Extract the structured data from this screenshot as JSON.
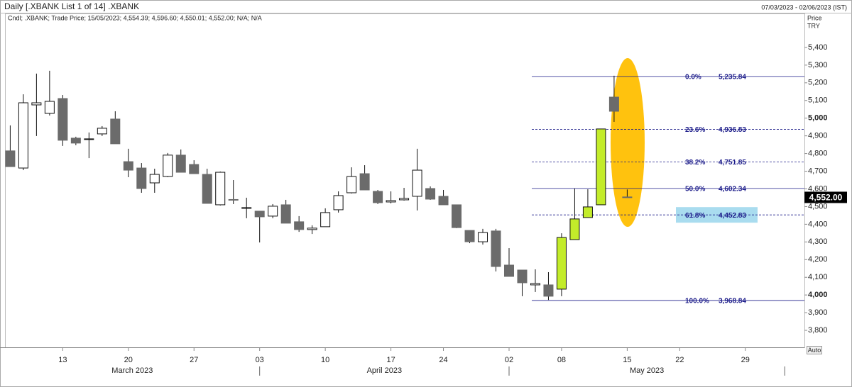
{
  "header": {
    "title": "Daily [.XBANK List 1 of 14] .XBANK",
    "date_range": "07/03/2023 - 02/06/2023 (IST)"
  },
  "chart_data": {
    "type": "candlestick",
    "legend_text": "Cndl; .XBANK; Trade Price; 15/05/2023; 4,554.39; 4,596.60; 4,550.01; 4,552.00; N/A; N/A",
    "y_axis_label": [
      "Price",
      "TRY"
    ],
    "auto_button": "Auto",
    "ylim": [
      3704,
      5548
    ],
    "yticks": [
      {
        "value": 3800,
        "label": "3,800"
      },
      {
        "value": 3900,
        "label": "3,900"
      },
      {
        "value": 4000,
        "label": "4,000"
      },
      {
        "value": 4100,
        "label": "4,100"
      },
      {
        "value": 4200,
        "label": "4,200"
      },
      {
        "value": 4300,
        "label": "4,300"
      },
      {
        "value": 4400,
        "label": "4,400"
      },
      {
        "value": 4500,
        "label": "4,500"
      },
      {
        "value": 4600,
        "label": "4,600"
      },
      {
        "value": 4700,
        "label": "4,700"
      },
      {
        "value": 4800,
        "label": "4,800"
      },
      {
        "value": 4900,
        "label": "4,900"
      },
      {
        "value": 5000,
        "label": "5,000"
      },
      {
        "value": 5100,
        "label": "5,100"
      },
      {
        "value": 5200,
        "label": "5,200"
      },
      {
        "value": 5300,
        "label": "5,300"
      },
      {
        "value": 5400,
        "label": "5,400"
      }
    ],
    "xlim": [
      -0.4,
      60.5
    ],
    "xticks": [
      {
        "value": 4,
        "label": "13"
      },
      {
        "value": 9,
        "label": "20"
      },
      {
        "value": 14,
        "label": "27"
      },
      {
        "value": 19,
        "label": "03"
      },
      {
        "value": 24,
        "label": "10"
      },
      {
        "value": 29,
        "label": "17"
      },
      {
        "value": 33,
        "label": "24"
      },
      {
        "value": 38,
        "label": "02"
      },
      {
        "value": 42,
        "label": "08"
      },
      {
        "value": 47,
        "label": "15"
      },
      {
        "value": 51,
        "label": "22"
      },
      {
        "value": 56,
        "label": "29"
      }
    ],
    "month_ticks": [
      19,
      38,
      59
    ],
    "months": [
      "March 2023",
      "April 2023",
      "May 2023"
    ],
    "open": [
      4815,
      4718,
      5075,
      5027,
      5111,
      4887,
      4879,
      4911,
      4995,
      4754,
      4718,
      4634,
      4670,
      4791,
      4738,
      4682,
      4510,
      4540,
      4494,
      4474,
      4446,
      4510,
      4414,
      4370,
      4386,
      4482,
      4578,
      4686,
      4586,
      4526,
      4538,
      4558,
      4602,
      4558,
      4510,
      4365,
      4301,
      4362,
      4169,
      4141,
      4057,
      4057,
      4033,
      4313,
      4438,
      4510,
      5119,
      4554.39
    ],
    "high": [
      4959,
      5135,
      5252,
      5268,
      5131,
      4895,
      4919,
      4955,
      5039,
      4827,
      4746,
      4714,
      4803,
      4823,
      4762,
      4714,
      4698,
      4650,
      4550,
      4474,
      4514,
      4538,
      4446,
      4394,
      4490,
      4586,
      4722,
      4734,
      4594,
      4586,
      4606,
      4827,
      4614,
      4594,
      4510,
      4365,
      4374,
      4374,
      4265,
      4141,
      4145,
      4129,
      4349,
      4602,
      4598,
      4939,
      5240,
      4596.6
    ],
    "low": [
      4726,
      4706,
      4899,
      5015,
      4843,
      4847,
      4774,
      4899,
      4855,
      4666,
      4578,
      4578,
      4666,
      4694,
      4686,
      4518,
      4506,
      4514,
      4434,
      4297,
      4434,
      4406,
      4357,
      4345,
      4386,
      4466,
      4574,
      4594,
      4514,
      4518,
      4534,
      4478,
      4538,
      4510,
      4378,
      4293,
      4285,
      4133,
      4105,
      3993,
      4017,
      3972,
      3993,
      4313,
      4438,
      4510,
      4979,
      4550.01
    ],
    "close": [
      4726,
      5087,
      5087,
      5095,
      4875,
      4859,
      4883,
      4943,
      4855,
      4706,
      4602,
      4682,
      4791,
      4694,
      4686,
      4518,
      4694,
      4538,
      4494,
      4442,
      4502,
      4406,
      4370,
      4378,
      4466,
      4562,
      4670,
      4594,
      4522,
      4534,
      4546,
      4706,
      4542,
      4510,
      4381,
      4301,
      4353,
      4161,
      4105,
      4069,
      4065,
      3993,
      4325,
      4430,
      4498,
      4939,
      5039,
      4552.0
    ],
    "slots": [
      0,
      1,
      2,
      3,
      4,
      5,
      6,
      7,
      8,
      9,
      10,
      11,
      12,
      13,
      14,
      15,
      16,
      17,
      18,
      19,
      20,
      21,
      22,
      23,
      24,
      25,
      26,
      27,
      28,
      29,
      30,
      31,
      32,
      33,
      34,
      35,
      36,
      37,
      38,
      39,
      40,
      41,
      42,
      43,
      44,
      45,
      46,
      47
    ],
    "up_color": "#ffffff",
    "down_color": "#6b6b6b",
    "highlight_color": "#c3ec2a",
    "highlighted": [
      42,
      43,
      44,
      45
    ],
    "last_price": 4552.0,
    "last_price_label": "4,552.00",
    "fib_levels": [
      {
        "label": "0.0%",
        "value": 5235.84,
        "value_label": "5,235.84",
        "dashed": false
      },
      {
        "label": "23.6%",
        "value": 4936.83,
        "value_label": "4,936.83",
        "dashed": true
      },
      {
        "label": "38.2%",
        "value": 4751.85,
        "value_label": "4,751.85",
        "dashed": true
      },
      {
        "label": "50.0%",
        "value": 4602.34,
        "value_label": "4,602.34",
        "dashed": false
      },
      {
        "label": "61.8%",
        "value": 4452.83,
        "value_label": "4,452.83",
        "dashed": true,
        "highlight": "#a9dcef"
      },
      {
        "label": "100.0%",
        "value": 3968.84,
        "value_label": "3,968.84",
        "dashed": false
      }
    ],
    "fib_color": "#1c1c8a"
  }
}
